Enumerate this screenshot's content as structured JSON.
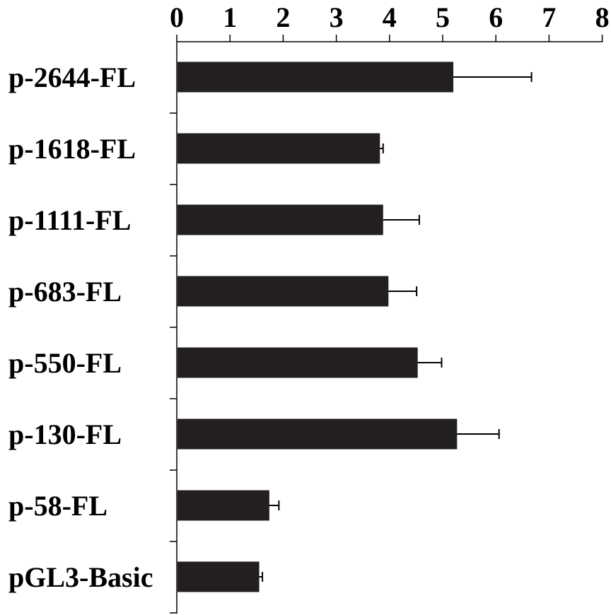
{
  "chart_data": {
    "type": "bar",
    "orientation": "horizontal",
    "categories": [
      "p-2644-FL",
      "p-1618-FL",
      "p-1111-FL",
      "p-683-FL",
      "p-550-FL",
      "p-130-FL",
      "p-58-FL",
      "pGL3-Basic"
    ],
    "series": [
      {
        "values": [
          5.2,
          3.82,
          3.88,
          3.98,
          4.53,
          5.27,
          1.74,
          1.55
        ],
        "errors": [
          1.47,
          0.06,
          0.68,
          0.53,
          0.45,
          0.79,
          0.18,
          0.06
        ],
        "color": "#231f20"
      }
    ],
    "x_ticks": [
      "0",
      "1",
      "2",
      "3",
      "4",
      "5",
      "6",
      "7",
      "8"
    ],
    "xlim": [
      0,
      8
    ],
    "x_axis_position": "top",
    "grid": false,
    "legend": "none",
    "title": "",
    "xlabel": "",
    "ylabel": ""
  }
}
